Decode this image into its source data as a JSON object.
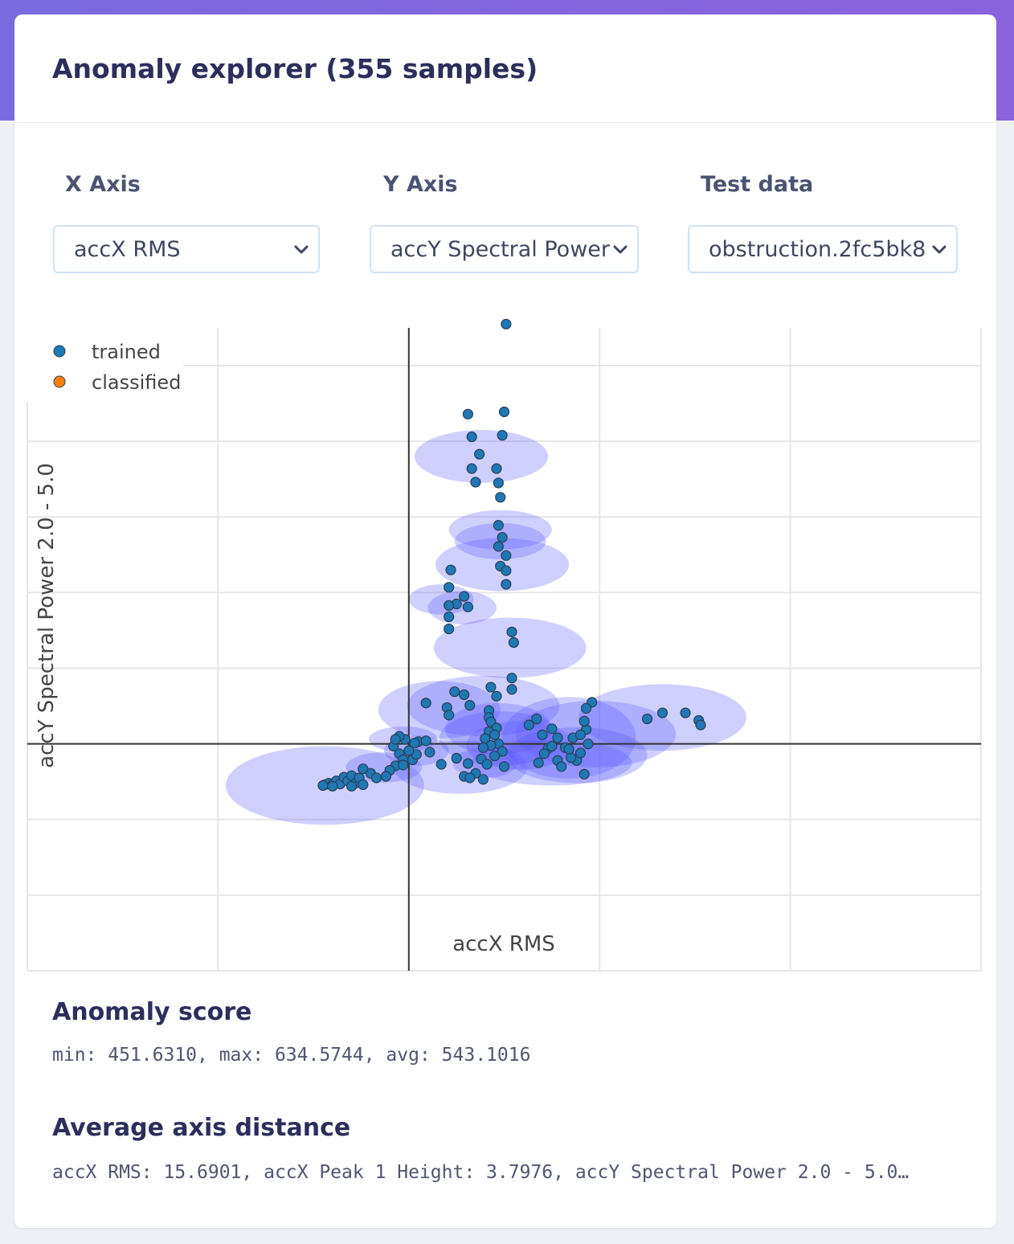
{
  "header": {
    "title": "Anomaly explorer (355 samples)"
  },
  "controls": {
    "x_axis": {
      "label": "X Axis",
      "value": "accX RMS"
    },
    "y_axis": {
      "label": "Y Axis",
      "value": "accY Spectral Power"
    },
    "test_data": {
      "label": "Test data",
      "value": "obstruction.2fc5bk8"
    }
  },
  "chart_data": {
    "type": "scatter",
    "title": "",
    "xlabel": "accX RMS",
    "ylabel": "accY Spectral Power 2.0 - 5.0",
    "xlim": [
      -2.0,
      3.0
    ],
    "ylim": [
      -3.0,
      5.5
    ],
    "grid": true,
    "legend_position": "top-left",
    "legend": [
      "trained",
      "classified"
    ],
    "colors": {
      "trained": "#1f77b4",
      "classified": "#ff7f0e",
      "cluster": "#5555ff",
      "axis": "#333333",
      "grid": "#e6e6e6"
    },
    "series": [
      {
        "name": "trained",
        "points": [
          [
            0.51,
            5.55
          ],
          [
            0.31,
            4.36
          ],
          [
            0.5,
            4.39
          ],
          [
            0.49,
            4.08
          ],
          [
            0.33,
            4.06
          ],
          [
            0.37,
            3.83
          ],
          [
            0.33,
            3.64
          ],
          [
            0.46,
            3.64
          ],
          [
            0.35,
            3.46
          ],
          [
            0.47,
            3.45
          ],
          [
            0.48,
            3.26
          ],
          [
            0.47,
            2.89
          ],
          [
            0.49,
            2.73
          ],
          [
            0.47,
            2.61
          ],
          [
            0.51,
            2.49
          ],
          [
            0.48,
            2.35
          ],
          [
            0.51,
            2.29
          ],
          [
            0.51,
            2.11
          ],
          [
            0.22,
            2.3
          ],
          [
            0.21,
            2.07
          ],
          [
            0.29,
            1.95
          ],
          [
            0.25,
            1.85
          ],
          [
            0.31,
            1.81
          ],
          [
            0.21,
            1.83
          ],
          [
            0.21,
            1.68
          ],
          [
            0.21,
            1.52
          ],
          [
            0.54,
            1.48
          ],
          [
            0.55,
            1.34
          ],
          [
            0.54,
            0.87
          ],
          [
            0.54,
            0.72
          ],
          [
            0.43,
            0.75
          ],
          [
            0.46,
            0.63
          ],
          [
            0.29,
            0.65
          ],
          [
            0.24,
            0.69
          ],
          [
            0.2,
            0.48
          ],
          [
            0.21,
            0.38
          ],
          [
            0.09,
            0.54
          ],
          [
            0.32,
            0.51
          ],
          [
            0.42,
            0.44
          ],
          [
            0.42,
            0.35
          ],
          [
            0.43,
            0.29
          ],
          [
            0.46,
            0.21
          ],
          [
            0.42,
            0.16
          ],
          [
            0.45,
            0.12
          ],
          [
            0.4,
            0.07
          ],
          [
            0.47,
            0.0
          ],
          [
            0.43,
            -0.02
          ],
          [
            0.39,
            -0.05
          ],
          [
            0.49,
            -0.1
          ],
          [
            0.45,
            -0.16
          ],
          [
            0.38,
            -0.2
          ],
          [
            0.41,
            -0.27
          ],
          [
            0.5,
            -0.3
          ],
          [
            0.31,
            -0.26
          ],
          [
            0.35,
            -0.39
          ],
          [
            0.29,
            -0.43
          ],
          [
            0.25,
            -0.19
          ],
          [
            0.17,
            -0.27
          ],
          [
            0.39,
            -0.47
          ],
          [
            0.32,
            -0.45
          ],
          [
            0.67,
            0.33
          ],
          [
            0.63,
            0.25
          ],
          [
            0.75,
            0.2
          ],
          [
            0.78,
            0.08
          ],
          [
            0.73,
            -0.06
          ],
          [
            0.7,
            0.12
          ],
          [
            0.75,
            -0.03
          ],
          [
            0.86,
            0.08
          ],
          [
            0.78,
            -0.22
          ],
          [
            0.88,
            -0.22
          ],
          [
            0.93,
            0.19
          ],
          [
            0.92,
            0.3
          ],
          [
            0.94,
            0.0
          ],
          [
            0.9,
            -0.12
          ],
          [
            0.85,
            -0.18
          ],
          [
            0.82,
            -0.05
          ],
          [
            0.68,
            -0.25
          ],
          [
            0.92,
            -0.4
          ],
          [
            0.96,
            0.55
          ],
          [
            0.93,
            0.47
          ],
          [
            0.9,
            0.12
          ],
          [
            0.71,
            -0.13
          ],
          [
            0.84,
            -0.07
          ],
          [
            0.8,
            -0.3
          ],
          [
            1.25,
            0.33
          ],
          [
            1.33,
            0.41
          ],
          [
            1.45,
            0.41
          ],
          [
            1.52,
            0.31
          ],
          [
            1.53,
            0.25
          ],
          [
            -0.02,
            0.06
          ],
          [
            -0.05,
            0.1
          ],
          [
            0.05,
            0.03
          ],
          [
            0.03,
            0.01
          ],
          [
            -0.08,
            -0.03
          ],
          [
            -0.05,
            -0.13
          ],
          [
            -0.03,
            -0.21
          ],
          [
            -0.07,
            -0.29
          ],
          [
            0.02,
            -0.21
          ],
          [
            0.04,
            -0.14
          ],
          [
            -0.1,
            -0.35
          ],
          [
            -0.12,
            -0.43
          ],
          [
            -0.2,
            -0.39
          ],
          [
            -0.24,
            -0.33
          ],
          [
            -0.17,
            -0.45
          ],
          [
            -0.03,
            -0.28
          ],
          [
            0.09,
            0.04
          ],
          [
            0.11,
            -0.11
          ],
          [
            0.0,
            -0.09
          ],
          [
            -0.07,
            0.06
          ],
          [
            -0.44,
            -0.54
          ],
          [
            -0.42,
            -0.52
          ],
          [
            -0.4,
            -0.54
          ],
          [
            -0.38,
            -0.49
          ],
          [
            -0.36,
            -0.53
          ],
          [
            -0.34,
            -0.44
          ],
          [
            -0.32,
            -0.49
          ],
          [
            -0.3,
            -0.42
          ],
          [
            -0.28,
            -0.52
          ],
          [
            -0.26,
            -0.45
          ],
          [
            -0.24,
            -0.54
          ],
          [
            -0.4,
            -0.56
          ],
          [
            -0.45,
            -0.55
          ],
          [
            -0.3,
            -0.56
          ]
        ]
      },
      {
        "name": "classified",
        "points": []
      }
    ],
    "clusters": [
      [
        0.38,
        3.8,
        0.35,
        0.35
      ],
      [
        0.48,
        2.83,
        0.27,
        0.26
      ],
      [
        0.48,
        2.68,
        0.24,
        0.24
      ],
      [
        0.49,
        2.37,
        0.35,
        0.35
      ],
      [
        0.17,
        1.91,
        0.17,
        0.2
      ],
      [
        0.28,
        1.8,
        0.18,
        0.22
      ],
      [
        0.53,
        1.27,
        0.4,
        0.4
      ],
      [
        0.16,
        0.45,
        0.32,
        0.38
      ],
      [
        0.39,
        0.5,
        0.4,
        0.4
      ],
      [
        0.47,
        0.2,
        0.28,
        0.34
      ],
      [
        0.48,
        0.07,
        0.32,
        0.36
      ],
      [
        0.58,
        -0.02,
        0.28,
        0.32
      ],
      [
        0.27,
        -0.31,
        0.35,
        0.35
      ],
      [
        0.4,
        -0.25,
        0.17,
        0.2
      ],
      [
        0.84,
        0.08,
        0.35,
        0.54
      ],
      [
        0.88,
        -0.15,
        0.37,
        0.37
      ],
      [
        0.98,
        0.13,
        0.42,
        0.44
      ],
      [
        0.75,
        -0.25,
        0.42,
        0.3
      ],
      [
        1.33,
        0.35,
        0.44,
        0.44
      ],
      [
        -0.03,
        0.06,
        0.18,
        0.17
      ],
      [
        0.04,
        -0.09,
        0.17,
        0.2
      ],
      [
        -0.13,
        -0.31,
        0.2,
        0.2
      ],
      [
        -0.44,
        -0.55,
        0.52,
        0.52
      ]
    ]
  },
  "anomaly_score": {
    "title": "Anomaly score",
    "text": "min: 451.6310, max: 634.5744, avg: 543.1016"
  },
  "axis_distance": {
    "title": "Average axis distance",
    "text": "accX RMS: 15.6901, accX Peak 1 Height: 3.7976, accY Spectral Power 2.0 - 5.0…"
  }
}
